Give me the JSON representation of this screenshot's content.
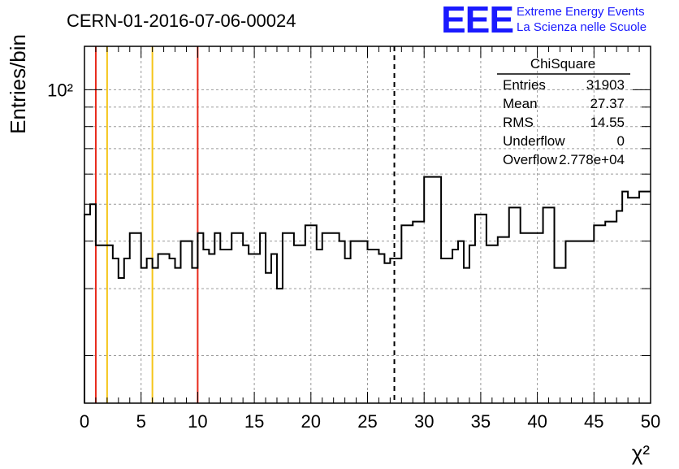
{
  "title": "CERN-01-2016-07-06-00024",
  "logo": {
    "mark": "EEE",
    "line1": "Extreme Energy Events",
    "line2": "La Scienza nelle Scuole",
    "color": "#1a1aff"
  },
  "stats": {
    "title": "ChiSquare",
    "rows": [
      {
        "label": "Entries",
        "value": "31903"
      },
      {
        "label": "Mean",
        "value": "27.37"
      },
      {
        "label": "RMS",
        "value": "14.55"
      },
      {
        "label": "Underflow",
        "value": "0"
      },
      {
        "label": "Overflow",
        "value": "2.778e+04"
      }
    ]
  },
  "chart_data": {
    "type": "line",
    "style": "step histogram",
    "xlabel": "χ²",
    "ylabel": "Entries/bin",
    "xlim": [
      0,
      50
    ],
    "ylim": [
      15,
      130
    ],
    "yscale": "log",
    "grid": true,
    "bin_width": 0.5,
    "x_ticks": [
      0,
      5,
      10,
      15,
      20,
      25,
      30,
      35,
      40,
      45,
      50
    ],
    "y_ticks": [
      {
        "value": 100,
        "label": "10²"
      }
    ],
    "series": [
      {
        "values": [
          47,
          50,
          39,
          39,
          39,
          36,
          32,
          36,
          42,
          42,
          34,
          36,
          34,
          37,
          37,
          36,
          34,
          40,
          40,
          34,
          42,
          38,
          37,
          42,
          38,
          38,
          42,
          42,
          39,
          37,
          37,
          42,
          33,
          37,
          30,
          42,
          42,
          39,
          39,
          44,
          44,
          38,
          42,
          42,
          42,
          40,
          36,
          40,
          40,
          40,
          38,
          38,
          37,
          35,
          36,
          36,
          44,
          44,
          45,
          45,
          59,
          59,
          59,
          36,
          36,
          38,
          40,
          34,
          39,
          47,
          47,
          39,
          39,
          41,
          41,
          49,
          49,
          42,
          42,
          42,
          42,
          49,
          49,
          34,
          34,
          40,
          40,
          40,
          40,
          40,
          44,
          44,
          45,
          45,
          48,
          54,
          52,
          52,
          54,
          54
        ]
      }
    ],
    "vertical_lines": [
      {
        "x": 1,
        "color": "#e8291a",
        "style": "solid"
      },
      {
        "x": 2,
        "color": "#f5c518",
        "style": "solid"
      },
      {
        "x": 6,
        "color": "#f5c518",
        "style": "solid"
      },
      {
        "x": 10,
        "color": "#e8291a",
        "style": "solid"
      },
      {
        "x": 27.37,
        "color": "#000000",
        "style": "dashed"
      }
    ]
  }
}
